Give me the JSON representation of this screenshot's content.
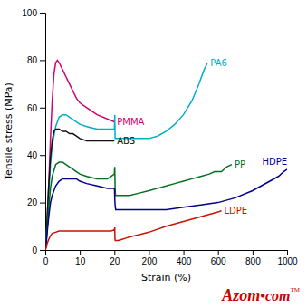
{
  "chart_data": {
    "type": "line",
    "xlabel": "Strain (%)",
    "ylabel": "Tensile stress (MPa)",
    "xlim": [
      0,
      1000
    ],
    "xticks": [
      0,
      10,
      20,
      200,
      400,
      600,
      800,
      1000
    ],
    "ylim": [
      0,
      100
    ],
    "yticks": [
      0,
      20,
      40,
      60,
      80,
      100
    ],
    "grid": false,
    "series": [
      {
        "name": "PMMA",
        "color": "#d4006e",
        "x": [
          0,
          0.3,
          0.6,
          1,
          1.5,
          2,
          2.5,
          3,
          3.5,
          4,
          5,
          6,
          7,
          8,
          9,
          10,
          12,
          15,
          20
        ],
        "values": [
          0,
          6,
          15,
          28,
          47,
          63,
          74,
          79,
          80,
          79,
          76,
          73,
          70,
          67,
          64,
          62,
          60,
          57,
          54
        ]
      },
      {
        "name": "PA6",
        "color": "#00aec8",
        "x": [
          0,
          0.3,
          0.6,
          1,
          1.5,
          2,
          3,
          4,
          5,
          6,
          7,
          8,
          9,
          10,
          12,
          15,
          18,
          19,
          20,
          21,
          22,
          23,
          24,
          25,
          30,
          40,
          60,
          80,
          100,
          150,
          200,
          250,
          300,
          350,
          400,
          450,
          490,
          520,
          540
        ],
        "values": [
          0,
          5,
          13,
          24,
          36,
          44,
          52,
          56,
          57,
          57,
          56,
          55,
          54,
          53,
          52,
          51,
          51,
          51,
          51,
          53,
          57,
          52,
          47,
          47,
          47,
          47,
          47,
          47,
          47,
          47,
          47,
          48,
          50,
          53,
          57,
          63,
          70,
          76,
          79
        ]
      },
      {
        "name": "ABS",
        "color": "#111111",
        "x": [
          0,
          0.3,
          0.6,
          1,
          1.5,
          2,
          2.5,
          3,
          3.5,
          4,
          5,
          6,
          7,
          8,
          9,
          10,
          12,
          15,
          20
        ],
        "values": [
          0,
          6,
          15,
          27,
          39,
          46,
          50,
          51,
          51,
          51,
          50,
          50,
          49,
          49,
          48,
          47,
          46,
          46,
          46
        ]
      },
      {
        "name": "PP",
        "color": "#007020",
        "x": [
          0,
          0.3,
          0.6,
          1,
          1.5,
          2,
          3,
          4,
          5,
          6,
          7,
          8,
          9,
          10,
          12,
          15,
          18,
          19,
          20,
          21,
          22,
          23,
          24,
          25,
          26,
          27,
          28,
          30,
          40,
          60,
          80,
          100,
          150,
          200,
          250,
          300,
          350,
          400,
          450,
          500,
          550,
          580,
          620,
          650,
          680
        ],
        "values": [
          0,
          4,
          10,
          18,
          26,
          31,
          36,
          37,
          37,
          36,
          35,
          34,
          33,
          32,
          31,
          30,
          30,
          31,
          32,
          34,
          35,
          30,
          26,
          24,
          23,
          23,
          23,
          23,
          23,
          23,
          23,
          23,
          24,
          25,
          26,
          27,
          28,
          29,
          30,
          31,
          32,
          33,
          33,
          35,
          36
        ]
      },
      {
        "name": "HDPE",
        "color": "#00008b",
        "x": [
          0,
          0.3,
          0.6,
          1,
          1.5,
          2,
          3,
          4,
          5,
          6,
          7,
          8,
          9,
          10,
          12,
          15,
          18,
          20,
          21,
          22,
          23,
          24,
          25,
          27,
          30,
          40,
          60,
          80,
          100,
          150,
          200,
          300,
          400,
          500,
          600,
          700,
          800,
          900,
          950,
          980,
          1000
        ],
        "values": [
          0,
          3,
          8,
          14,
          20,
          23,
          27,
          29,
          30,
          30,
          30,
          30,
          30,
          29,
          28,
          27,
          26,
          26,
          25,
          22,
          20,
          19,
          18,
          17,
          17,
          17,
          17,
          17,
          17,
          17,
          17,
          17,
          18,
          19,
          20,
          22,
          25,
          29,
          31,
          33,
          34
        ]
      },
      {
        "name": "LDPE",
        "color": "#cc1100",
        "x": [
          0,
          0.3,
          0.6,
          1,
          1.5,
          2,
          3,
          4,
          5,
          6,
          7,
          8,
          9,
          10,
          12,
          15,
          18,
          19,
          20,
          21,
          22,
          23,
          24,
          25,
          27,
          30,
          40,
          60,
          80,
          100,
          150,
          200,
          300,
          400,
          500,
          600,
          620
        ],
        "values": [
          0,
          1,
          3,
          4.5,
          6,
          7,
          7.5,
          8,
          8,
          8,
          8,
          8,
          8,
          8,
          8,
          8,
          8,
          8,
          8.5,
          9,
          9.5,
          5,
          4,
          4,
          4,
          4,
          4,
          4.5,
          5,
          5.5,
          6.5,
          7.5,
          10,
          12,
          14,
          16,
          16.5
        ]
      }
    ],
    "annotations": [
      {
        "text": "Azom",
        "color": "#cc0000"
      },
      {
        "text": "•com",
        "color": "#cc0000"
      },
      {
        "text": "TM",
        "color": "#cc0000"
      }
    ]
  }
}
